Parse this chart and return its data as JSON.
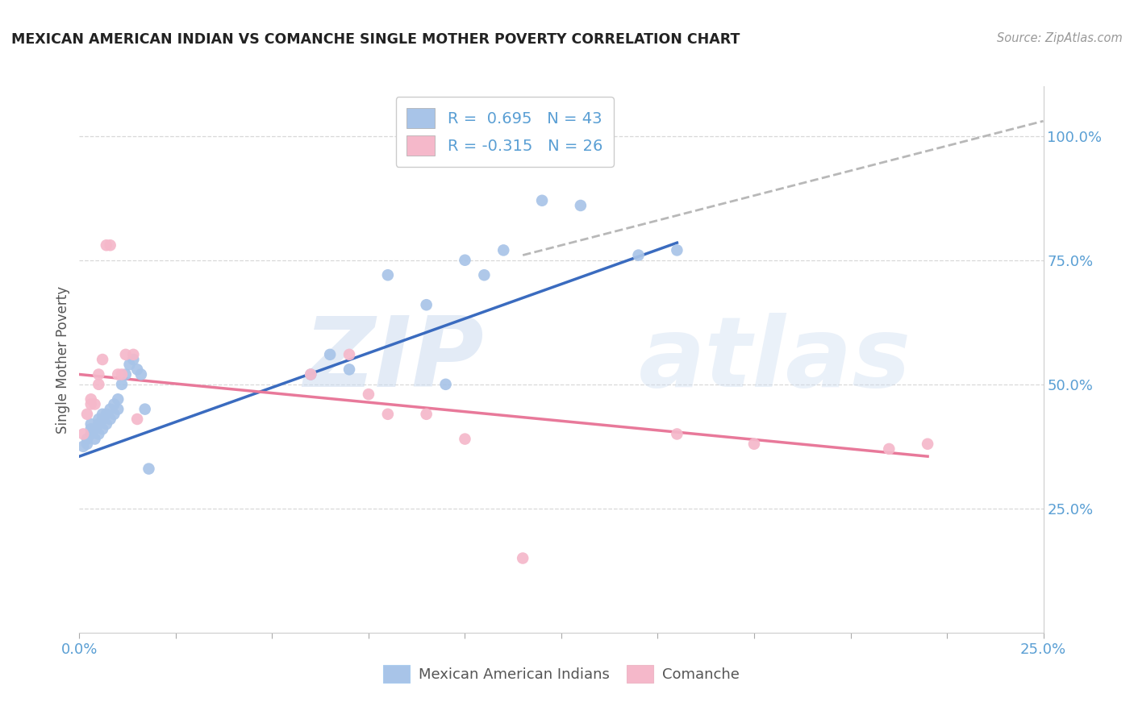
{
  "title": "MEXICAN AMERICAN INDIAN VS COMANCHE SINGLE MOTHER POVERTY CORRELATION CHART",
  "source": "Source: ZipAtlas.com",
  "ylabel": "Single Mother Poverty",
  "legend_label1": "Mexican American Indians",
  "legend_label2": "Comanche",
  "r1": 0.695,
  "n1": 43,
  "r2": -0.315,
  "n2": 26,
  "blue_color": "#a8c4e8",
  "pink_color": "#f5b8ca",
  "blue_line_color": "#3a6bbf",
  "pink_line_color": "#e8799a",
  "dashed_line_color": "#b8b8b8",
  "watermark_zip": "ZIP",
  "watermark_atlas": "atlas",
  "blue_x": [
    0.001,
    0.002,
    0.002,
    0.003,
    0.003,
    0.003,
    0.004,
    0.004,
    0.005,
    0.005,
    0.005,
    0.006,
    0.006,
    0.006,
    0.007,
    0.007,
    0.008,
    0.008,
    0.009,
    0.009,
    0.01,
    0.01,
    0.011,
    0.012,
    0.013,
    0.014,
    0.015,
    0.016,
    0.017,
    0.018,
    0.06,
    0.065,
    0.07,
    0.08,
    0.09,
    0.095,
    0.1,
    0.105,
    0.11,
    0.12,
    0.13,
    0.145,
    0.155
  ],
  "blue_y": [
    0.375,
    0.38,
    0.39,
    0.4,
    0.41,
    0.42,
    0.39,
    0.41,
    0.4,
    0.42,
    0.43,
    0.41,
    0.43,
    0.44,
    0.42,
    0.44,
    0.43,
    0.45,
    0.44,
    0.46,
    0.45,
    0.47,
    0.5,
    0.52,
    0.54,
    0.55,
    0.53,
    0.52,
    0.45,
    0.33,
    0.52,
    0.56,
    0.53,
    0.72,
    0.66,
    0.5,
    0.75,
    0.72,
    0.77,
    0.87,
    0.86,
    0.76,
    0.77
  ],
  "pink_x": [
    0.001,
    0.002,
    0.003,
    0.003,
    0.004,
    0.005,
    0.005,
    0.006,
    0.007,
    0.008,
    0.01,
    0.011,
    0.012,
    0.014,
    0.015,
    0.06,
    0.07,
    0.075,
    0.08,
    0.09,
    0.1,
    0.115,
    0.155,
    0.175,
    0.21,
    0.22
  ],
  "pink_y": [
    0.4,
    0.44,
    0.46,
    0.47,
    0.46,
    0.5,
    0.52,
    0.55,
    0.78,
    0.78,
    0.52,
    0.52,
    0.56,
    0.56,
    0.43,
    0.52,
    0.56,
    0.48,
    0.44,
    0.44,
    0.39,
    0.15,
    0.4,
    0.38,
    0.37,
    0.38
  ],
  "blue_trend_x": [
    0.0,
    0.155
  ],
  "blue_trend_y": [
    0.355,
    0.785
  ],
  "pink_trend_x": [
    0.0,
    0.22
  ],
  "pink_trend_y": [
    0.52,
    0.355
  ],
  "dashed_trend_x": [
    0.115,
    0.25
  ],
  "dashed_trend_y": [
    0.76,
    1.03
  ],
  "xlim": [
    0.0,
    0.25
  ],
  "ylim": [
    0.0,
    1.1
  ],
  "ytick_vals": [
    0.25,
    0.5,
    0.75,
    1.0
  ],
  "ytick_labels": [
    "25.0%",
    "50.0%",
    "75.0%",
    "100.0%"
  ],
  "xtick_count": 11
}
